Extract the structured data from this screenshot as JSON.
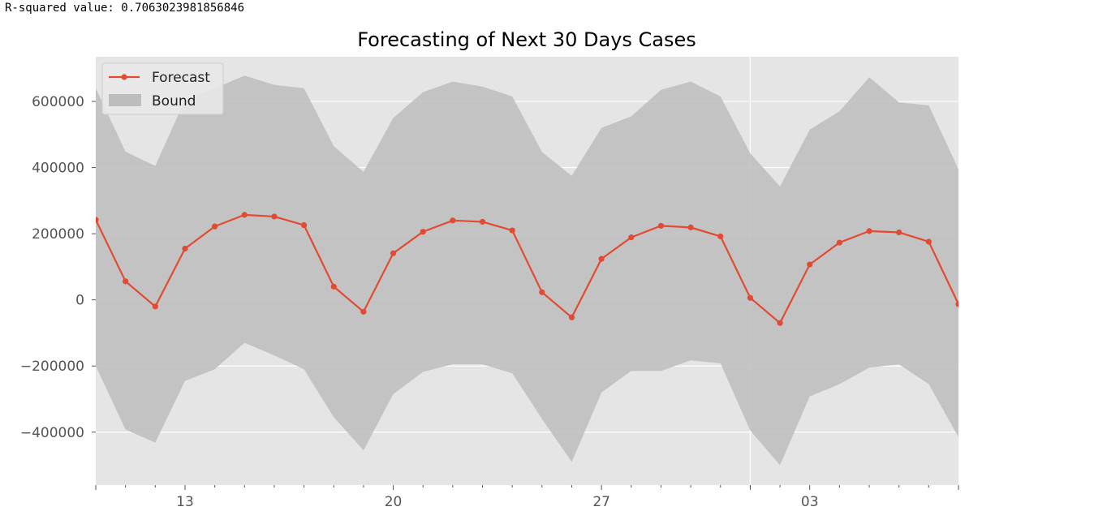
{
  "output": {
    "r_squared_text": "R-squared value: 0.7063023981856846"
  },
  "chart_data": {
    "type": "line",
    "title": "Forecasting of Next 30 Days Cases",
    "xlabel": "",
    "ylabel": "",
    "style": "ggplot",
    "grid": true,
    "legend_position": "upper-left",
    "xlim": [
      0,
      29
    ],
    "ylim": [
      -560000,
      735000
    ],
    "x_ticks": [
      {
        "x": 3,
        "label": "13"
      },
      {
        "x": 10,
        "label": "20"
      },
      {
        "x": 17,
        "label": "27"
      },
      {
        "x": 24,
        "label": "03"
      }
    ],
    "x_minor_ticks": [
      0,
      1,
      2,
      4,
      5,
      6,
      7,
      8,
      9,
      11,
      12,
      13,
      14,
      15,
      16,
      18,
      19,
      20,
      21,
      22,
      23,
      25,
      26,
      27,
      28,
      29
    ],
    "vertical_grid_x": [
      22
    ],
    "y_ticks": [
      600000,
      400000,
      200000,
      0,
      -200000,
      -400000
    ],
    "y_tick_labels": [
      "600000",
      "400000",
      "200000",
      "0",
      "−200000",
      "−400000"
    ],
    "series": [
      {
        "name": "Forecast",
        "kind": "line-marker",
        "color": "#e24a33",
        "values": [
          242000,
          56000,
          -20000,
          155000,
          222000,
          257000,
          252000,
          226000,
          40000,
          -36000,
          141000,
          206000,
          240000,
          236000,
          210000,
          23000,
          -53000,
          124000,
          189000,
          224000,
          219000,
          192000,
          6000,
          -70000,
          107000,
          173000,
          208000,
          204000,
          176000,
          -13000
        ]
      },
      {
        "name": "Bound",
        "kind": "band",
        "color": "#bdbdbd",
        "upper": [
          640000,
          448000,
          405000,
          605000,
          640000,
          678000,
          650000,
          640000,
          465000,
          387000,
          550000,
          628000,
          660000,
          645000,
          615000,
          447000,
          375000,
          520000,
          555000,
          635000,
          660000,
          615000,
          443000,
          343000,
          515000,
          570000,
          673000,
          597000,
          588000,
          395000
        ],
        "lower": [
          -200000,
          -392000,
          -432000,
          -245000,
          -210000,
          -130000,
          -168000,
          -210000,
          -355000,
          -455000,
          -285000,
          -218000,
          -195000,
          -195000,
          -222000,
          -360000,
          -490000,
          -280000,
          -215000,
          -215000,
          -183000,
          -192000,
          -395000,
          -500000,
          -292000,
          -255000,
          -205000,
          -195000,
          -255000,
          -415000
        ]
      }
    ],
    "colors": {
      "axes_bg": "#e5e5e5",
      "grid": "#ffffff",
      "tick_text": "#555555",
      "title_text": "#000000"
    }
  }
}
